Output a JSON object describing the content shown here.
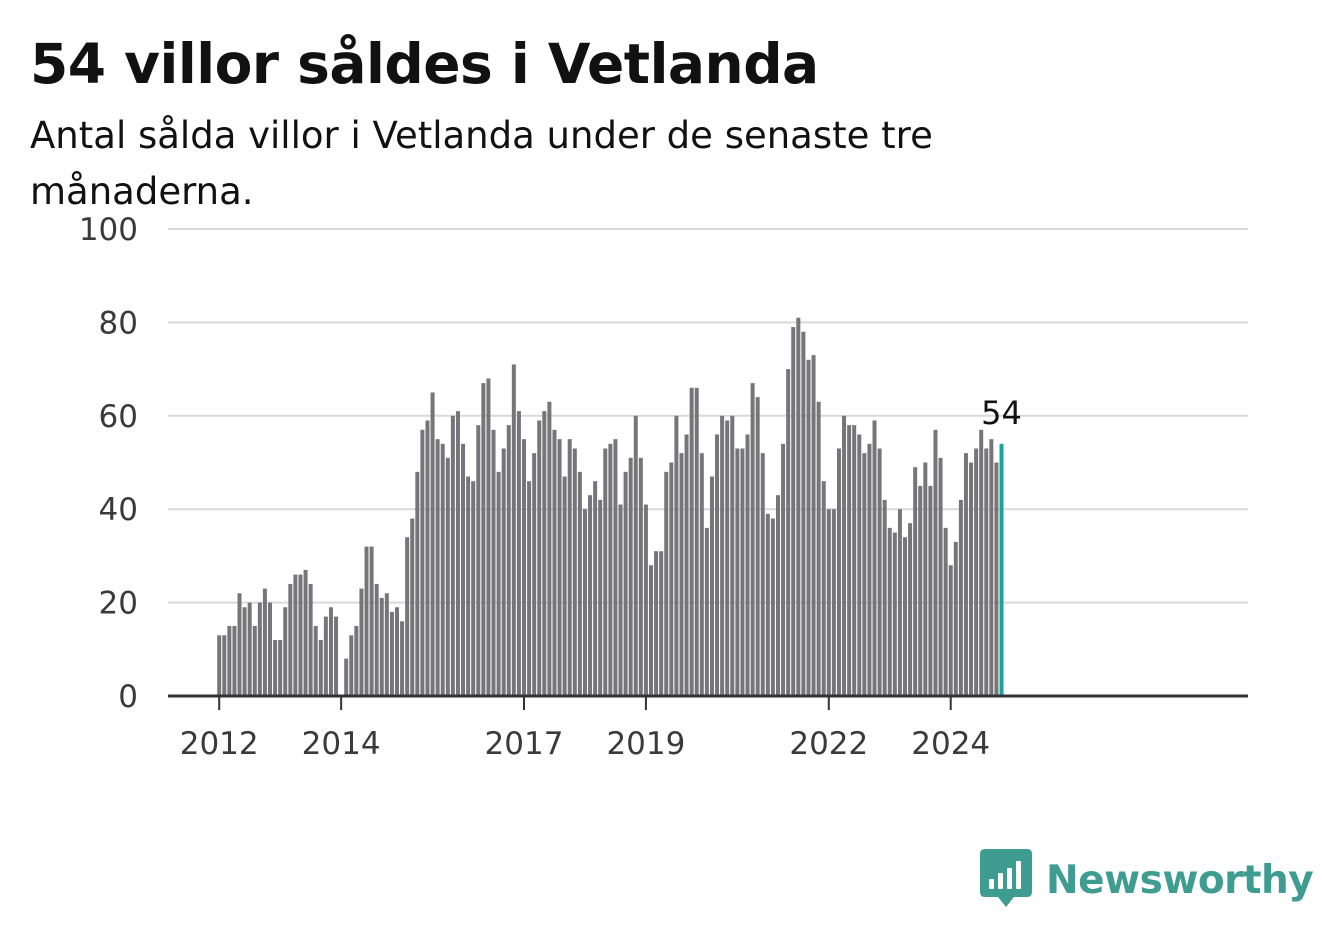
{
  "chart_data": {
    "type": "bar",
    "title": "54 villor såldes i Vetlanda",
    "subtitle": "Antal sålda villor i Vetlanda under de senaste tre månaderna.",
    "xlabel": "",
    "ylabel": "",
    "ylim": [
      0,
      100
    ],
    "yticks": [
      0,
      20,
      40,
      60,
      80,
      100
    ],
    "grid": true,
    "legend": "none",
    "x_start": "2012-01",
    "x_tick_labels": [
      {
        "label": "2012",
        "month": "2012-01"
      },
      {
        "label": "2014",
        "month": "2014-01"
      },
      {
        "label": "2017",
        "month": "2017-01"
      },
      {
        "label": "2019",
        "month": "2019-01"
      },
      {
        "label": "2022",
        "month": "2022-01"
      },
      {
        "label": "2024",
        "month": "2024-01"
      }
    ],
    "values": [
      13,
      13,
      15,
      15,
      22,
      19,
      20,
      15,
      20,
      23,
      20,
      12,
      12,
      19,
      24,
      26,
      26,
      27,
      24,
      15,
      12,
      17,
      19,
      17,
      0,
      8,
      13,
      15,
      23,
      32,
      32,
      24,
      21,
      22,
      18,
      19,
      16,
      34,
      38,
      48,
      57,
      59,
      65,
      55,
      54,
      51,
      60,
      61,
      54,
      47,
      46,
      58,
      67,
      68,
      57,
      48,
      53,
      58,
      71,
      61,
      55,
      46,
      52,
      59,
      61,
      63,
      57,
      55,
      47,
      55,
      53,
      48,
      40,
      43,
      46,
      42,
      53,
      54,
      55,
      41,
      48,
      51,
      60,
      51,
      41,
      28,
      31,
      31,
      48,
      50,
      60,
      52,
      56,
      66,
      66,
      52,
      36,
      47,
      56,
      60,
      59,
      60,
      53,
      53,
      56,
      67,
      64,
      52,
      39,
      38,
      43,
      54,
      70,
      79,
      81,
      78,
      72,
      73,
      63,
      46,
      40,
      40,
      53,
      60,
      58,
      58,
      56,
      52,
      54,
      59,
      53,
      42,
      36,
      35,
      40,
      34,
      37,
      49,
      45,
      50,
      45,
      57,
      51,
      36,
      28,
      33,
      42,
      52,
      50,
      53,
      57,
      53,
      55,
      50,
      54
    ],
    "highlight": {
      "label": "54",
      "value": 54
    },
    "colors": {
      "bar": "#75757a",
      "highlight": "#1aa39a",
      "grid": "#d9d9d9",
      "axis": "#333333"
    }
  },
  "brand": {
    "name": "Newsworthy",
    "icon": "newsworthy-logo-icon",
    "color": "#3e9c90"
  }
}
